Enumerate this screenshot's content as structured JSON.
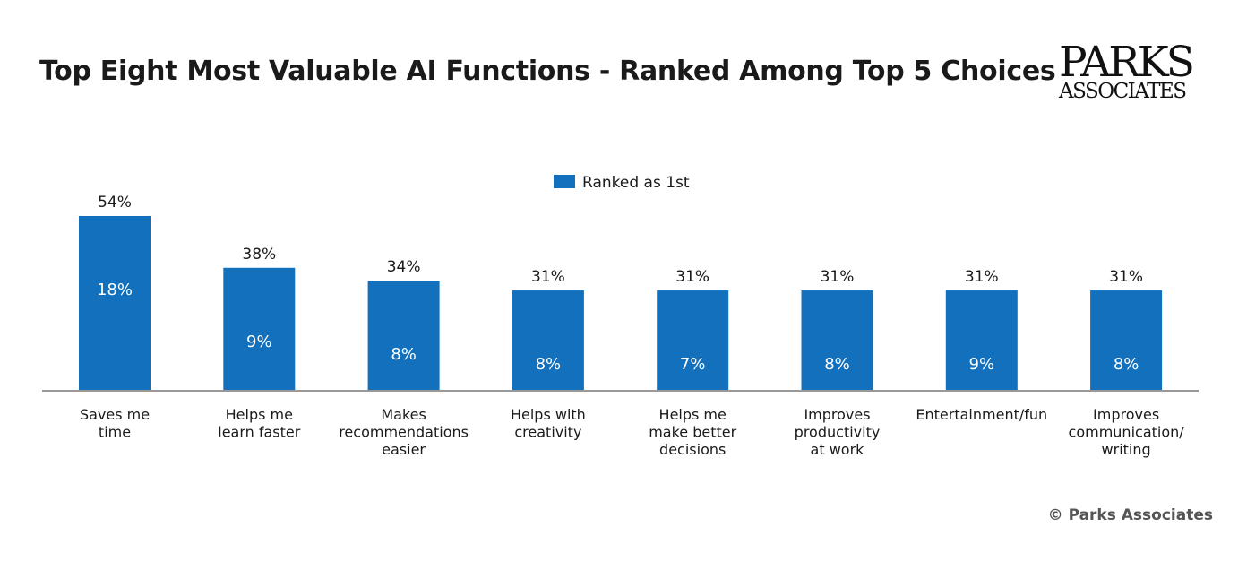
{
  "title": "Top Eight Most Valuable AI Functions - Ranked Among Top 5 Choices",
  "logo": {
    "line1": "PARKS",
    "line2": "ASSOCIATES"
  },
  "copyright": "© Parks Associates",
  "colors": {
    "bar": "#1270bd",
    "axis": "#999999",
    "text": "#1a1a1a"
  },
  "chart_data": {
    "type": "bar",
    "categories": [
      [
        "Saves me",
        "time"
      ],
      [
        "Helps me",
        "learn faster"
      ],
      [
        "Makes",
        "recommendations",
        "easier"
      ],
      [
        "Helps with",
        "creativity"
      ],
      [
        "Helps me",
        "make better",
        "decisions"
      ],
      [
        "Improves",
        "productivity",
        "at work"
      ],
      [
        "Entertainment/fun"
      ],
      [
        "Improves",
        "communication/",
        "writing"
      ]
    ],
    "values": [
      54,
      38,
      34,
      31,
      31,
      31,
      31,
      31
    ],
    "value_labels": [
      "54%",
      "38%",
      "34%",
      "31%",
      "31%",
      "31%",
      "31%",
      "31%"
    ],
    "series": [
      {
        "name": "Ranked as 1st",
        "values": [
          18,
          9,
          8,
          8,
          7,
          8,
          9,
          8
        ],
        "labels": [
          "18%",
          "9%",
          "8%",
          "8%",
          "7%",
          "8%",
          "9%",
          "8%"
        ]
      }
    ],
    "legend": "top-center",
    "ylim": [
      0,
      54
    ],
    "grid": false
  }
}
